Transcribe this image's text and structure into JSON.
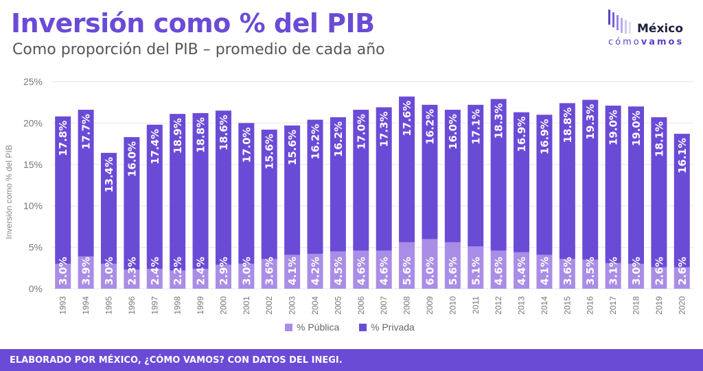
{
  "header": {
    "title": "Inversión como % del PIB",
    "subtitle": "Como proporción del PIB – promedio de cada año"
  },
  "logo": {
    "name": "México",
    "tag_part1": "cómo",
    "tag_part2": "vamos"
  },
  "footer": {
    "text": "ELABORADO POR MÉXICO, ¿CÓMO VAMOS? CON DATOS DEL INEGI."
  },
  "colors": {
    "title": "#6a4bd6",
    "publica": "#a98de6",
    "privada": "#6a4bd6",
    "footer_bg": "#6a4bd6"
  },
  "chart_data": {
    "type": "bar",
    "stacked": true,
    "ylabel": "Inversión como % del PIB",
    "ylim": [
      0,
      25
    ],
    "yticks": [
      "0%",
      "5%",
      "10%",
      "15%",
      "20%",
      "25%"
    ],
    "grid": true,
    "legend_position": "bottom",
    "categories": [
      "1993",
      "1994",
      "1995",
      "1996",
      "1997",
      "1998",
      "1999",
      "2000",
      "2001",
      "2002",
      "2003",
      "2004",
      "2005",
      "2006",
      "2007",
      "2008",
      "2009",
      "2010",
      "2011",
      "2012",
      "2013",
      "2014",
      "2015",
      "2016",
      "2017",
      "2018",
      "2019",
      "2020"
    ],
    "series": [
      {
        "name": "% Pública",
        "color": "#a98de6",
        "values": [
          3.0,
          3.9,
          3.0,
          2.3,
          2.4,
          2.2,
          2.4,
          2.9,
          3.0,
          3.6,
          4.1,
          4.2,
          4.5,
          4.6,
          4.6,
          5.6,
          6.0,
          5.6,
          5.1,
          4.6,
          4.4,
          4.1,
          3.6,
          3.5,
          3.1,
          3.0,
          2.6,
          2.6
        ],
        "labels": [
          "3.0%",
          "3.9%",
          "3.0%",
          "2.3%",
          "2.4%",
          "2.2%",
          "2.4%",
          "2.9%",
          "3.0%",
          "3.6%",
          "4.1%",
          "4.2%",
          "4.5%",
          "4.6%",
          "4.6%",
          "5.6%",
          "6.0%",
          "5.6%",
          "5.1%",
          "4.6%",
          "4.4%",
          "4.1%",
          "3.6%",
          "3.5%",
          "3.1%",
          "3.0%",
          "2.6%",
          "2.6%"
        ]
      },
      {
        "name": "% Privada",
        "color": "#6a4bd6",
        "values": [
          17.8,
          17.7,
          13.4,
          16.0,
          17.4,
          18.9,
          18.8,
          18.6,
          17.0,
          15.6,
          15.6,
          16.2,
          16.2,
          17.0,
          17.3,
          17.6,
          16.2,
          16.0,
          17.1,
          18.3,
          16.9,
          16.9,
          18.8,
          19.3,
          19.0,
          19.0,
          18.1,
          16.1
        ],
        "labels": [
          "17.8%",
          "17.7%",
          "13.4%",
          "16.0%",
          "17.4%",
          "18.9%",
          "18.8%",
          "18.6%",
          "17.0%",
          "15.6%",
          "15.6%",
          "16.2%",
          "16.2%",
          "17.0%",
          "17.3%",
          "17.6%",
          "16.2%",
          "16.0%",
          "17.1%",
          "18.3%",
          "16.9%",
          "16.9%",
          "18.8%",
          "19.3%",
          "19.0%",
          "19.0%",
          "18.1%",
          "16.1%"
        ]
      }
    ]
  }
}
